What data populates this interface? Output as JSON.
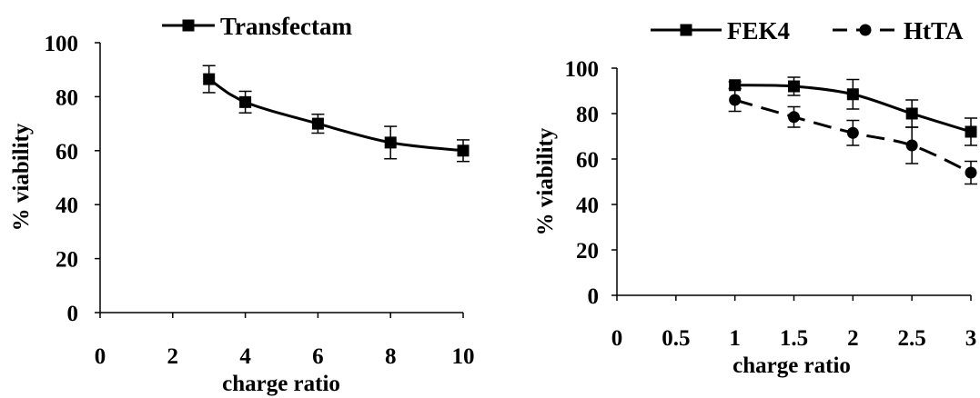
{
  "chart_data": [
    {
      "type": "line",
      "xlabel": "charge ratio",
      "ylabel": "% viability",
      "xlim": [
        0,
        10
      ],
      "ylim": [
        0,
        100
      ],
      "xticks": [
        "0",
        "2",
        "4",
        "6",
        "8",
        "10"
      ],
      "yticks": [
        "0",
        "20",
        "40",
        "60",
        "80",
        "100"
      ],
      "grid": false,
      "legend_position": "top",
      "series": [
        {
          "name": "Transfectam",
          "marker": "square",
          "line_style": "solid",
          "x": [
            3,
            4,
            6,
            8,
            10
          ],
          "y": [
            86.5,
            78,
            70,
            63,
            60
          ],
          "error": [
            5,
            4,
            3.5,
            6,
            4
          ]
        }
      ]
    },
    {
      "type": "line",
      "xlabel": "charge ratio",
      "ylabel": "% viability",
      "xlim": [
        0,
        3
      ],
      "ylim": [
        0,
        100
      ],
      "xticks": [
        "0",
        "0.5",
        "1",
        "1.5",
        "2",
        "2.5",
        "3"
      ],
      "yticks": [
        "0",
        "20",
        "40",
        "60",
        "80",
        "100"
      ],
      "grid": false,
      "legend_position": "top",
      "series": [
        {
          "name": "FEK4",
          "marker": "square",
          "line_style": "solid",
          "x": [
            1,
            1.5,
            2,
            2.5,
            3
          ],
          "y": [
            92.5,
            92,
            88.5,
            80,
            72
          ],
          "error": [
            1.5,
            4,
            6.5,
            6,
            6
          ]
        },
        {
          "name": "HtTA",
          "marker": "circle",
          "line_style": "dashed",
          "x": [
            1,
            1.5,
            2,
            2.5,
            3
          ],
          "y": [
            86,
            78.5,
            71.5,
            66,
            54
          ],
          "error": [
            5,
            4.5,
            5.5,
            8,
            5
          ]
        }
      ]
    }
  ]
}
